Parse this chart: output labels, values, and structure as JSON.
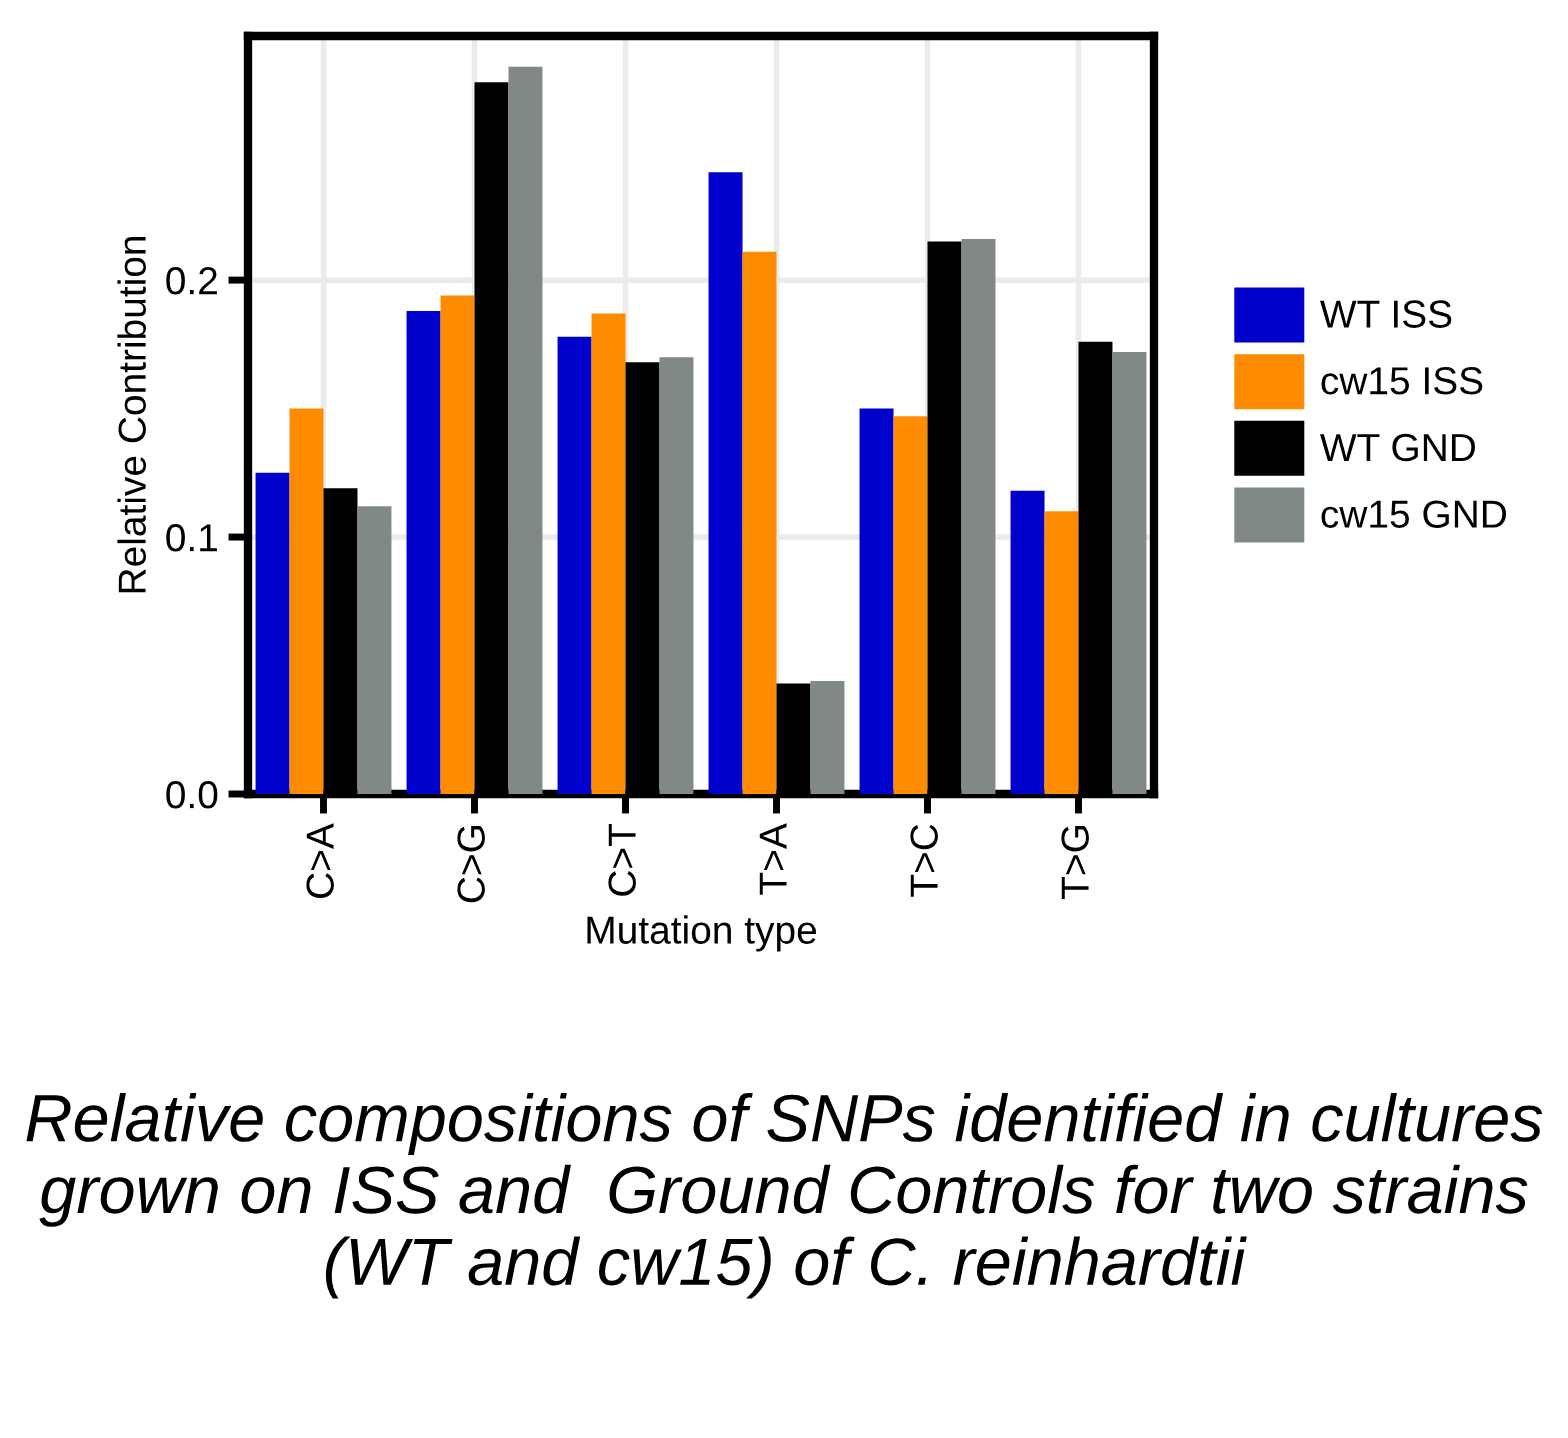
{
  "chart_data": {
    "type": "bar",
    "xlabel": "Mutation type",
    "ylabel": "Relative Contribution",
    "categories": [
      "C>A",
      "C>G",
      "C>T",
      "T>A",
      "T>C",
      "T>G"
    ],
    "series": [
      {
        "name": "WT ISS",
        "color": "#0000cc",
        "values": [
          0.125,
          0.188,
          0.178,
          0.242,
          0.15,
          0.118
        ]
      },
      {
        "name": "cw15 ISS",
        "color": "#ff8c00",
        "values": [
          0.15,
          0.194,
          0.187,
          0.211,
          0.147,
          0.11
        ]
      },
      {
        "name": "WT GND",
        "color": "#000000",
        "values": [
          0.119,
          0.277,
          0.168,
          0.043,
          0.215,
          0.176
        ]
      },
      {
        "name": "cw15 GND",
        "color": "#808888",
        "values": [
          0.112,
          0.283,
          0.17,
          0.044,
          0.216,
          0.172
        ]
      }
    ],
    "ylim": [
      0,
      0.295
    ],
    "yticks": [
      {
        "value": 0,
        "label": "0.0"
      },
      0.1,
      0.2
    ],
    "grid": true,
    "legend": "right",
    "annotations": [
      "Relative compositions of SNPs identified in cultures grown on ISS and  Ground Controls for two strains (WT and cw15) of C. reinhardtii"
    ]
  }
}
